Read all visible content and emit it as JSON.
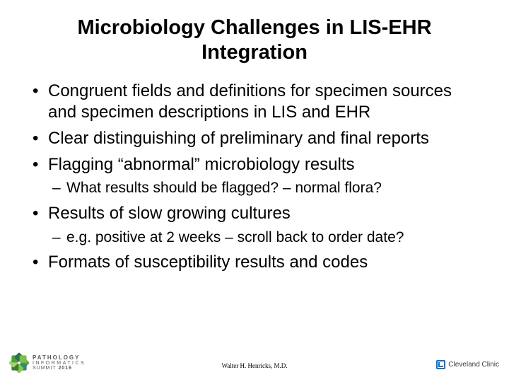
{
  "title_fontsize": "29px",
  "bullet_fontsize": "24px",
  "sub_fontsize": "21px",
  "title_line1": "Microbiology Challenges in LIS-EHR",
  "title_line2": "Integration",
  "bullets": {
    "b0": "Congruent fields and definitions for specimen sources and specimen descriptions in LIS and EHR",
    "b1": "Clear distinguishing of preliminary and final reports",
    "b2": "Flagging “abnormal” microbiology results",
    "b2_sub0": "What results should be flagged? – normal flora?",
    "b3": "Results of slow growing cultures",
    "b3_sub0": "e.g. positive at 2 weeks – scroll back to order date?",
    "b4": "Formats of susceptibility results and codes"
  },
  "footer": {
    "author": "Walter H. Henricks, M.D.",
    "left_logo": {
      "line1": "PATHOLOGY",
      "line2": "INFORMATICS",
      "line3_a": "SUMMIT",
      "line3_b": "2016",
      "text_color": "#5b5b5b",
      "petal_colors": [
        "#6aa643",
        "#2a8f72",
        "#8cc63f",
        "#3a7a33",
        "#a3d16a",
        "#4f9e3f",
        "#2f6f52",
        "#7cbf4a"
      ]
    },
    "right_logo": {
      "mark_color": "#0072ce",
      "text": "Cleveland Clinic",
      "text_color": "#3b3b3b"
    }
  }
}
